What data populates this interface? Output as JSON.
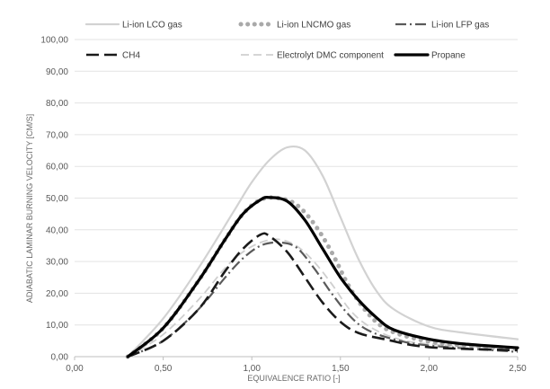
{
  "chart_data": {
    "type": "line",
    "title": "",
    "xlabel": "EQUIVALENCE RATIO [-]",
    "ylabel": "ADIABATIC LAMINAR BURNING VELOCITY [CM/S]",
    "xlim": [
      0,
      2.5
    ],
    "ylim": [
      0,
      100
    ],
    "x_ticks": [
      "0,00",
      "0,50",
      "1,00",
      "1,50",
      "2,00",
      "2,50"
    ],
    "y_ticks": [
      "0,00",
      "10,00",
      "20,00",
      "30,00",
      "40,00",
      "50,00",
      "60,00",
      "70,00",
      "80,00",
      "90,00",
      "100,00"
    ],
    "grid": "horizontal",
    "legend_position": "top",
    "series": [
      {
        "name": "Li-ion LCO gas",
        "color": "#d2d2d2",
        "style": "solid",
        "points": [
          [
            0.3,
            0
          ],
          [
            0.5,
            12
          ],
          [
            0.7,
            28
          ],
          [
            0.9,
            46
          ],
          [
            1.0,
            55
          ],
          [
            1.1,
            62
          ],
          [
            1.2,
            66
          ],
          [
            1.3,
            65
          ],
          [
            1.4,
            57
          ],
          [
            1.5,
            44
          ],
          [
            1.6,
            31
          ],
          [
            1.7,
            21
          ],
          [
            1.8,
            15
          ],
          [
            2.0,
            9.5
          ],
          [
            2.2,
            7.5
          ],
          [
            2.5,
            5.5
          ]
        ]
      },
      {
        "name": "Li-ion LNCMO gas",
        "color": "#a9a9a9",
        "style": "dotted",
        "points": [
          [
            0.3,
            0
          ],
          [
            0.5,
            9
          ],
          [
            0.7,
            24
          ],
          [
            0.85,
            37
          ],
          [
            0.95,
            45
          ],
          [
            1.05,
            49.5
          ],
          [
            1.15,
            50
          ],
          [
            1.25,
            48
          ],
          [
            1.35,
            42
          ],
          [
            1.45,
            33
          ],
          [
            1.55,
            22
          ],
          [
            1.65,
            14
          ],
          [
            1.75,
            9
          ],
          [
            1.9,
            6
          ],
          [
            2.1,
            4
          ],
          [
            2.5,
            2.5
          ]
        ]
      },
      {
        "name": "Li-ion LFP gas",
        "color": "#5a5a5a",
        "style": "dashdot",
        "points": [
          [
            0.3,
            0
          ],
          [
            0.5,
            5
          ],
          [
            0.7,
            15
          ],
          [
            0.85,
            25
          ],
          [
            0.95,
            31
          ],
          [
            1.05,
            35
          ],
          [
            1.15,
            36
          ],
          [
            1.25,
            34.5
          ],
          [
            1.35,
            28
          ],
          [
            1.45,
            20
          ],
          [
            1.55,
            13
          ],
          [
            1.65,
            8.5
          ],
          [
            1.8,
            5.5
          ],
          [
            2.0,
            3.5
          ],
          [
            2.5,
            1.5
          ]
        ]
      },
      {
        "name": "CH4",
        "color": "#1a1a1a",
        "style": "longdash",
        "points": [
          [
            0.3,
            0
          ],
          [
            0.5,
            5
          ],
          [
            0.7,
            15
          ],
          [
            0.85,
            27
          ],
          [
            0.95,
            34
          ],
          [
            1.05,
            38.5
          ],
          [
            1.1,
            38
          ],
          [
            1.2,
            33
          ],
          [
            1.3,
            25
          ],
          [
            1.4,
            17
          ],
          [
            1.5,
            11
          ],
          [
            1.6,
            7.5
          ],
          [
            1.75,
            5.5
          ],
          [
            2.0,
            3
          ],
          [
            2.5,
            2
          ]
        ]
      },
      {
        "name": "Electrolyt DMC component",
        "color": "#cfcfcf",
        "style": "dashed",
        "points": [
          [
            0.3,
            0
          ],
          [
            0.5,
            7
          ],
          [
            0.7,
            18
          ],
          [
            0.85,
            28
          ],
          [
            0.95,
            33
          ],
          [
            1.05,
            36
          ],
          [
            1.15,
            37
          ],
          [
            1.25,
            35
          ],
          [
            1.35,
            30
          ],
          [
            1.45,
            23
          ],
          [
            1.55,
            15
          ],
          [
            1.65,
            10
          ],
          [
            1.8,
            6
          ],
          [
            2.0,
            4
          ],
          [
            2.5,
            2.5
          ]
        ]
      },
      {
        "name": "Propane",
        "color": "#000000",
        "style": "thick",
        "points": [
          [
            0.3,
            0
          ],
          [
            0.5,
            9
          ],
          [
            0.7,
            24
          ],
          [
            0.85,
            37
          ],
          [
            0.95,
            45
          ],
          [
            1.05,
            49.5
          ],
          [
            1.1,
            50.2
          ],
          [
            1.2,
            49
          ],
          [
            1.3,
            43
          ],
          [
            1.4,
            34
          ],
          [
            1.5,
            25
          ],
          [
            1.6,
            18
          ],
          [
            1.7,
            12.5
          ],
          [
            1.8,
            8.5
          ],
          [
            2.0,
            5.5
          ],
          [
            2.2,
            4
          ],
          [
            2.5,
            2.8
          ]
        ]
      }
    ]
  }
}
